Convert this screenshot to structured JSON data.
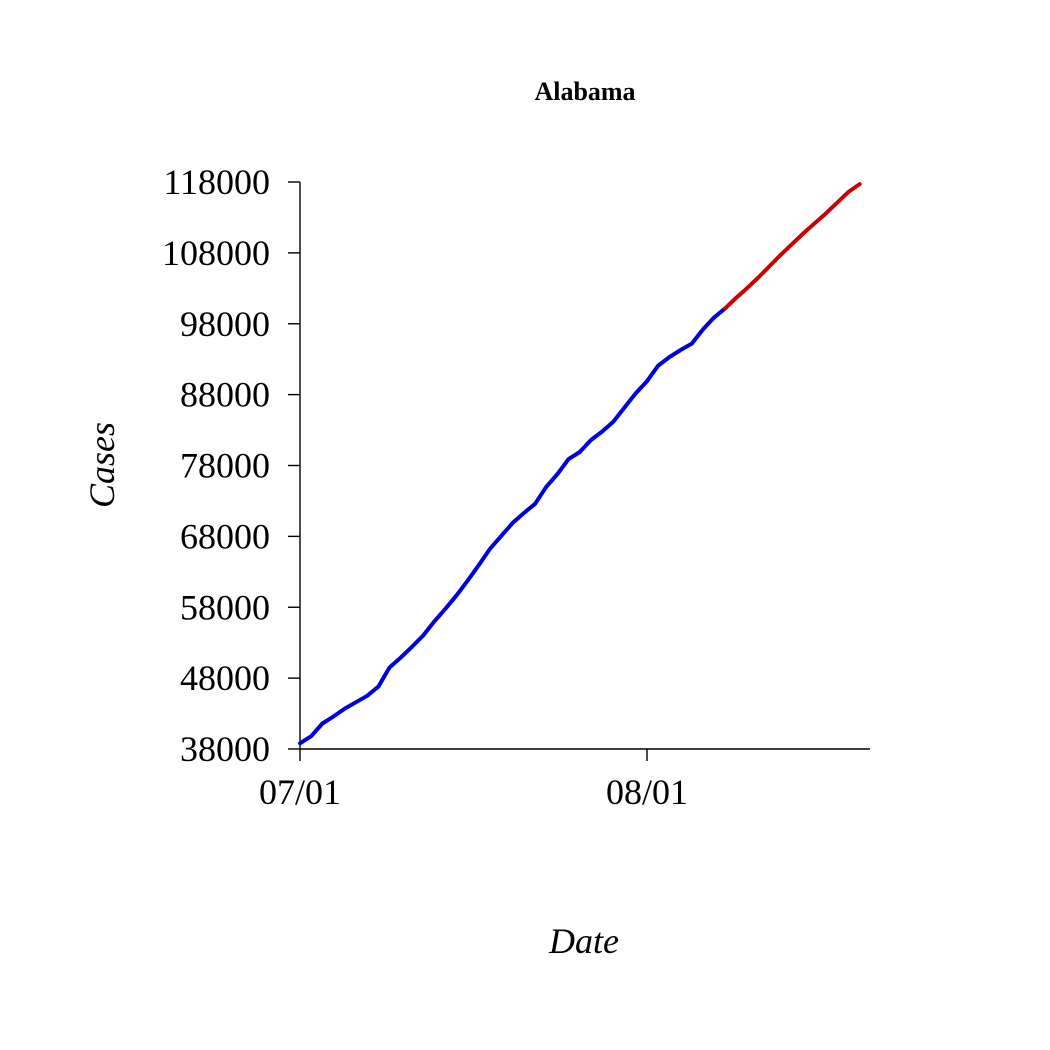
{
  "chart_data": {
    "type": "line",
    "title": "Alabama",
    "xlabel": "Date",
    "ylabel": "Cases",
    "xlim": [
      "2020-07-01",
      "2020-08-20"
    ],
    "ylim": [
      38000,
      118000
    ],
    "x_ticks": [
      {
        "date": "2020-07-01",
        "label": "07/01"
      },
      {
        "date": "2020-08-01",
        "label": "08/01"
      }
    ],
    "y_ticks": [
      38000,
      48000,
      58000,
      68000,
      78000,
      88000,
      98000,
      108000,
      118000
    ],
    "grid": false,
    "legend": "none",
    "series": [
      {
        "color": "#0000dd",
        "points": [
          {
            "x": "2020-07-01",
            "y": 38800
          },
          {
            "x": "2020-07-02",
            "y": 39800
          },
          {
            "x": "2020-07-03",
            "y": 41600
          },
          {
            "x": "2020-07-04",
            "y": 42600
          },
          {
            "x": "2020-07-05",
            "y": 43700
          },
          {
            "x": "2020-07-06",
            "y": 44600
          },
          {
            "x": "2020-07-07",
            "y": 45500
          },
          {
            "x": "2020-07-08",
            "y": 46800
          },
          {
            "x": "2020-07-09",
            "y": 49500
          },
          {
            "x": "2020-07-10",
            "y": 50900
          },
          {
            "x": "2020-07-11",
            "y": 52400
          },
          {
            "x": "2020-07-12",
            "y": 54000
          },
          {
            "x": "2020-07-13",
            "y": 56000
          },
          {
            "x": "2020-07-14",
            "y": 57800
          },
          {
            "x": "2020-07-15",
            "y": 59700
          },
          {
            "x": "2020-07-16",
            "y": 61800
          },
          {
            "x": "2020-07-17",
            "y": 64000
          },
          {
            "x": "2020-07-18",
            "y": 66300
          },
          {
            "x": "2020-07-19",
            "y": 68100
          },
          {
            "x": "2020-07-20",
            "y": 69900
          },
          {
            "x": "2020-07-21",
            "y": 71300
          },
          {
            "x": "2020-07-22",
            "y": 72600
          },
          {
            "x": "2020-07-23",
            "y": 75000
          },
          {
            "x": "2020-07-24",
            "y": 76800
          },
          {
            "x": "2020-07-25",
            "y": 78900
          },
          {
            "x": "2020-07-26",
            "y": 79900
          },
          {
            "x": "2020-07-27",
            "y": 81600
          },
          {
            "x": "2020-07-28",
            "y": 82800
          },
          {
            "x": "2020-07-29",
            "y": 84200
          },
          {
            "x": "2020-07-30",
            "y": 86200
          },
          {
            "x": "2020-07-31",
            "y": 88200
          },
          {
            "x": "2020-08-01",
            "y": 89900
          },
          {
            "x": "2020-08-02",
            "y": 92100
          },
          {
            "x": "2020-08-03",
            "y": 93300
          },
          {
            "x": "2020-08-04",
            "y": 94300
          },
          {
            "x": "2020-08-05",
            "y": 95200
          },
          {
            "x": "2020-08-06",
            "y": 97200
          },
          {
            "x": "2020-08-07",
            "y": 98900
          },
          {
            "x": "2020-08-08",
            "y": 100200
          }
        ]
      },
      {
        "color": "#cc0000",
        "points": [
          {
            "x": "2020-08-08",
            "y": 100200
          },
          {
            "x": "2020-08-09",
            "y": 101700
          },
          {
            "x": "2020-08-10",
            "y": 103100
          },
          {
            "x": "2020-08-11",
            "y": 104600
          },
          {
            "x": "2020-08-12",
            "y": 106200
          },
          {
            "x": "2020-08-13",
            "y": 107800
          },
          {
            "x": "2020-08-14",
            "y": 109300
          },
          {
            "x": "2020-08-15",
            "y": 110800
          },
          {
            "x": "2020-08-16",
            "y": 112200
          },
          {
            "x": "2020-08-17",
            "y": 113600
          },
          {
            "x": "2020-08-18",
            "y": 115100
          },
          {
            "x": "2020-08-19",
            "y": 116600
          },
          {
            "x": "2020-08-20",
            "y": 117700
          }
        ]
      }
    ]
  }
}
